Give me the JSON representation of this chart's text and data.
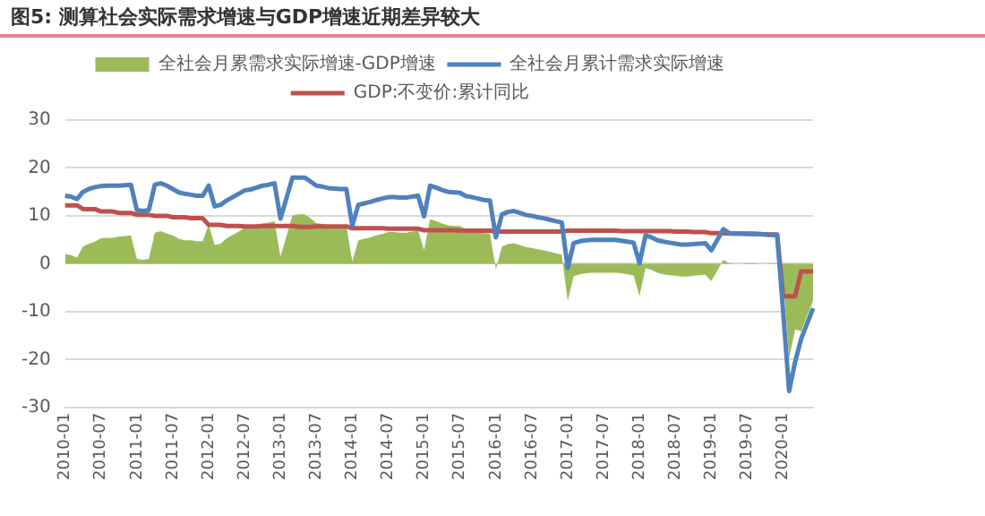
{
  "chart_data": {
    "type": "line",
    "title": "图5: 测算社会实际需求增速与GDP增速近期差异较大",
    "categories": [
      "2010-01",
      null,
      null,
      null,
      null,
      null,
      "2010-07",
      null,
      null,
      null,
      null,
      null,
      "2011-01",
      null,
      null,
      null,
      null,
      null,
      "2011-07",
      null,
      null,
      null,
      null,
      null,
      "2012-01",
      null,
      null,
      null,
      null,
      null,
      "2012-07",
      null,
      null,
      null,
      null,
      null,
      "2013-01",
      null,
      null,
      null,
      null,
      null,
      "2013-07",
      null,
      null,
      null,
      null,
      null,
      "2014-01",
      null,
      null,
      null,
      null,
      null,
      "2014-07",
      null,
      null,
      null,
      null,
      null,
      "2015-01",
      null,
      null,
      null,
      null,
      null,
      "2015-07",
      null,
      null,
      null,
      null,
      null,
      "2016-01",
      null,
      null,
      null,
      null,
      null,
      "2016-07",
      null,
      null,
      null,
      null,
      null,
      "2017-01",
      null,
      null,
      null,
      null,
      null,
      "2017-07",
      null,
      null,
      null,
      null,
      null,
      "2018-01",
      null,
      null,
      null,
      null,
      null,
      "2018-07",
      null,
      null,
      null,
      null,
      null,
      "2019-01",
      null,
      null,
      null,
      null,
      null,
      "2019-07",
      null,
      null,
      null,
      null,
      null,
      "2020-01",
      null,
      null,
      null,
      null,
      null
    ],
    "series": [
      {
        "name": "全社会月累需求实际增速-GDP增速",
        "type": "area",
        "color": "#9bbb59",
        "values": [
          2.0,
          1.8,
          1.3,
          3.6,
          4.2,
          4.6,
          5.3,
          5.4,
          5.4,
          5.7,
          5.8,
          5.9,
          1.0,
          0.8,
          1.0,
          6.5,
          6.8,
          6.3,
          5.9,
          5.2,
          4.9,
          4.9,
          4.7,
          4.7,
          8.2,
          3.9,
          4.2,
          5.3,
          6.0,
          6.7,
          7.5,
          7.7,
          8.1,
          8.4,
          8.6,
          8.9,
          1.5,
          5.8,
          10.1,
          10.3,
          10.3,
          9.5,
          8.5,
          8.3,
          8.0,
          7.9,
          7.8,
          7.8,
          0.5,
          4.9,
          5.2,
          5.5,
          5.9,
          6.2,
          6.6,
          6.6,
          6.5,
          6.5,
          6.7,
          6.9,
          2.9,
          9.3,
          8.9,
          8.4,
          8.0,
          7.9,
          7.9,
          7.2,
          7.0,
          6.7,
          6.4,
          6.3,
          -1.2,
          3.6,
          4.1,
          4.3,
          3.9,
          3.5,
          3.3,
          3.0,
          2.8,
          2.5,
          2.2,
          1.9,
          -7.8,
          -2.6,
          -2.2,
          -2.0,
          -1.9,
          -1.9,
          -1.9,
          -1.9,
          -1.9,
          -2.0,
          -2.2,
          -2.4,
          -6.7,
          -0.9,
          -1.3,
          -1.9,
          -2.2,
          -2.4,
          -2.5,
          -2.7,
          -2.7,
          -2.5,
          -2.4,
          -2.3,
          -3.6,
          -1.4,
          0.8,
          0.1,
          0.0,
          0.0,
          0.1,
          0.1,
          0.0,
          0.0,
          -0.1,
          -0.1,
          -3.2,
          -19.8,
          -13.7,
          -14.1,
          -10.9,
          -7.7
        ]
      },
      {
        "name": "全社会月累计需求实际增速",
        "type": "line",
        "color": "#4f81bd",
        "values": [
          14.2,
          14.0,
          13.5,
          15.0,
          15.6,
          16.0,
          16.2,
          16.3,
          16.3,
          16.3,
          16.4,
          16.5,
          11.2,
          11.0,
          11.2,
          16.5,
          16.8,
          16.3,
          15.6,
          14.9,
          14.6,
          14.4,
          14.2,
          14.2,
          16.3,
          12.0,
          12.3,
          13.2,
          13.9,
          14.6,
          15.3,
          15.5,
          15.9,
          16.3,
          16.5,
          16.8,
          9.4,
          13.7,
          18.0,
          18.0,
          18.0,
          17.2,
          16.3,
          16.1,
          15.8,
          15.7,
          15.6,
          15.6,
          7.9,
          12.3,
          12.6,
          12.9,
          13.3,
          13.6,
          13.9,
          13.9,
          13.8,
          13.8,
          14.0,
          14.2,
          9.9,
          16.3,
          15.9,
          15.4,
          15.0,
          14.9,
          14.8,
          14.1,
          13.9,
          13.6,
          13.3,
          13.2,
          5.5,
          10.3,
          10.8,
          11.0,
          10.6,
          10.2,
          10.0,
          9.7,
          9.5,
          9.2,
          8.9,
          8.6,
          -0.9,
          4.3,
          4.7,
          4.9,
          5.0,
          5.0,
          5.0,
          5.0,
          5.0,
          4.8,
          4.6,
          4.4,
          0.1,
          5.9,
          5.5,
          4.9,
          4.6,
          4.4,
          4.2,
          4.0,
          4.0,
          4.1,
          4.2,
          4.3,
          2.8,
          5.0,
          7.2,
          6.4,
          6.3,
          6.3,
          6.3,
          6.3,
          6.2,
          6.1,
          6.0,
          6.0,
          -10.0,
          -26.6,
          -20.5,
          -15.7,
          -12.5,
          -9.3
        ]
      },
      {
        "name": "GDP:不变价:累计同比",
        "type": "line",
        "color": "#c0504d",
        "values": [
          12.2,
          12.2,
          12.2,
          11.4,
          11.4,
          11.4,
          10.9,
          10.9,
          10.9,
          10.6,
          10.6,
          10.6,
          10.2,
          10.2,
          10.2,
          10.0,
          10.0,
          10.0,
          9.7,
          9.7,
          9.7,
          9.5,
          9.5,
          9.5,
          8.1,
          8.1,
          8.1,
          7.9,
          7.9,
          7.9,
          7.8,
          7.8,
          7.8,
          7.9,
          7.9,
          7.9,
          7.9,
          7.9,
          7.9,
          7.7,
          7.7,
          7.7,
          7.8,
          7.8,
          7.8,
          7.8,
          7.8,
          7.8,
          7.4,
          7.4,
          7.4,
          7.4,
          7.4,
          7.4,
          7.3,
          7.3,
          7.3,
          7.3,
          7.3,
          7.3,
          7.0,
          7.0,
          7.0,
          7.0,
          7.0,
          7.0,
          6.9,
          6.9,
          6.9,
          6.9,
          6.9,
          6.9,
          6.7,
          6.7,
          6.7,
          6.7,
          6.7,
          6.7,
          6.7,
          6.7,
          6.7,
          6.7,
          6.7,
          6.7,
          6.9,
          6.9,
          6.9,
          6.9,
          6.9,
          6.9,
          6.9,
          6.9,
          6.9,
          6.8,
          6.8,
          6.8,
          6.8,
          6.8,
          6.8,
          6.8,
          6.8,
          6.8,
          6.7,
          6.7,
          6.7,
          6.6,
          6.6,
          6.6,
          6.4,
          6.4,
          6.4,
          6.3,
          6.3,
          6.3,
          6.2,
          6.2,
          6.2,
          6.1,
          6.1,
          6.1,
          -6.8,
          -6.8,
          -6.8,
          -1.6,
          -1.6,
          -1.6
        ]
      }
    ],
    "ylim": [
      -30,
      30
    ],
    "yticks": [
      -30,
      -20,
      -10,
      0,
      10,
      20,
      30
    ],
    "grid": "y",
    "legend": "top",
    "marker": "none",
    "line_style": "solid"
  }
}
